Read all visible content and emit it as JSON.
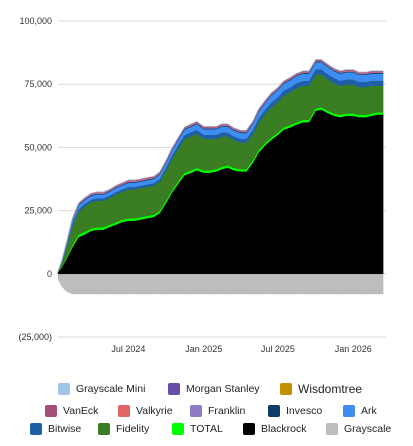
{
  "chart_data": {
    "type": "area",
    "stacked": true,
    "x": [
      "2024-01-11",
      "2024-01-20",
      "2024-02-01",
      "2024-02-15",
      "2024-03-01",
      "2024-03-15",
      "2024-04-01",
      "2024-04-15",
      "2024-05-01",
      "2024-05-15",
      "2024-06-01",
      "2024-06-15",
      "2024-07-01",
      "2024-07-15",
      "2024-08-01",
      "2024-08-15",
      "2024-09-01",
      "2024-09-15",
      "2024-10-01",
      "2024-10-15",
      "2024-11-01",
      "2024-11-15",
      "2024-12-01",
      "2024-12-15",
      "2025-01-01",
      "2025-01-15",
      "2025-02-01",
      "2025-02-15",
      "2025-03-01",
      "2025-03-15",
      "2025-04-01",
      "2025-04-15",
      "2025-05-01",
      "2025-05-15",
      "2025-06-01",
      "2025-06-15",
      "2025-07-01",
      "2025-07-15",
      "2025-08-01",
      "2025-08-15",
      "2025-09-01",
      "2025-09-15",
      "2025-10-01",
      "2025-10-15",
      "2025-11-01",
      "2025-11-15",
      "2025-12-01",
      "2025-12-15",
      "2026-01-01",
      "2026-01-15",
      "2026-02-01",
      "2026-02-15",
      "2026-03-01",
      "2026-03-15"
    ],
    "ylim": [
      -25000,
      100000
    ],
    "y_ticks": [
      -25000,
      0,
      25000,
      50000,
      75000,
      100000
    ],
    "y_tick_labels": [
      "(25,000)",
      "0",
      "25,000",
      "50,000",
      "75,000",
      "100,000"
    ],
    "x_ticks": [
      "2024-07-01",
      "2025-01-01",
      "2025-07-01",
      "2026-01-01"
    ],
    "x_tick_labels": [
      "Jul 2024",
      "Jan 2025",
      "Jul 2025",
      "Jan 2026"
    ],
    "grid": true,
    "legend_position": "bottom",
    "series": [
      {
        "name": "Grayscale",
        "color": "#bdbdbd",
        "values": [
          -2000,
          -5000,
          -7000,
          -8000,
          -8000,
          -8000,
          -8000,
          -8000,
          -8000,
          -8000,
          -8000,
          -8000,
          -8000,
          -8000,
          -8000,
          -8000,
          -8000,
          -8000,
          -8000,
          -8000,
          -8000,
          -8000,
          -8000,
          -8000,
          -8000,
          -8000,
          -8000,
          -8000,
          -8000,
          -8000,
          -8000,
          -8000,
          -8000,
          -8000,
          -8000,
          -8000,
          -8000,
          -8000,
          -8000,
          -8000,
          -8000,
          -8000,
          -8000,
          -8000,
          -8000,
          -8000,
          -8000,
          -8000,
          -8000,
          -8000,
          -8000,
          -8000,
          -8000,
          -8000
        ]
      },
      {
        "name": "Blackrock",
        "color": "#000000",
        "values": [
          500,
          2500,
          6000,
          10500,
          14500,
          15500,
          17000,
          17500,
          17500,
          18500,
          19500,
          20500,
          21000,
          21000,
          21500,
          22000,
          22500,
          24000,
          28000,
          32000,
          36000,
          39000,
          40000,
          41000,
          40000,
          40000,
          40500,
          41500,
          42000,
          41000,
          40500,
          40500,
          44000,
          48000,
          51000,
          53000,
          55000,
          57000,
          58000,
          59000,
          60000,
          60000,
          64500,
          65000,
          63500,
          62500,
          62000,
          62500,
          62500,
          62000,
          62000,
          62500,
          63000,
          63000
        ]
      },
      {
        "name": "TOTAL",
        "color": "#00ff00",
        "values": [
          0,
          200,
          500,
          800,
          1000,
          1000,
          900,
          900,
          900,
          900,
          900,
          900,
          900,
          900,
          900,
          900,
          900,
          900,
          900,
          900,
          900,
          900,
          900,
          900,
          900,
          900,
          900,
          900,
          900,
          900,
          900,
          900,
          900,
          900,
          900,
          900,
          900,
          900,
          900,
          900,
          900,
          900,
          900,
          900,
          900,
          900,
          900,
          900,
          900,
          900,
          900,
          900,
          900,
          900
        ]
      },
      {
        "name": "Fidelity",
        "color": "#3a7d22",
        "values": [
          500,
          1500,
          4000,
          7500,
          9000,
          10000,
          10500,
          10500,
          10500,
          10500,
          11000,
          11000,
          11500,
          11500,
          11500,
          11500,
          11500,
          11500,
          12000,
          12500,
          13000,
          13500,
          13500,
          13500,
          12500,
          12500,
          12000,
          12000,
          11500,
          11000,
          10500,
          10500,
          10500,
          11000,
          11500,
          12000,
          12000,
          12500,
          13000,
          13500,
          13500,
          13500,
          13500,
          13000,
          12500,
          12000,
          11500,
          11500,
          11500,
          11000,
          11000,
          11000,
          10500,
          10500
        ]
      },
      {
        "name": "Bitwise",
        "color": "#1f5fa8",
        "values": [
          0,
          300,
          700,
          900,
          1000,
          1000,
          1000,
          1000,
          1000,
          1000,
          1000,
          1000,
          1000,
          1000,
          1000,
          1000,
          1000,
          1100,
          1200,
          1300,
          1400,
          1500,
          1600,
          1600,
          1600,
          1600,
          1600,
          1600,
          1500,
          1500,
          1500,
          1500,
          1600,
          1700,
          1800,
          1900,
          2000,
          2000,
          2000,
          2000,
          2000,
          2000,
          2000,
          2000,
          2000,
          2000,
          2000,
          2000,
          2000,
          2000,
          2000,
          2000,
          2000,
          2000
        ]
      },
      {
        "name": "Ark",
        "color": "#3d8ef0",
        "values": [
          0,
          300,
          800,
          1200,
          1500,
          1500,
          1500,
          1500,
          1500,
          1500,
          1600,
          1600,
          1600,
          1600,
          1600,
          1600,
          1600,
          1700,
          1800,
          1900,
          2000,
          2100,
          2200,
          2200,
          2200,
          2200,
          2300,
          2300,
          2300,
          2300,
          2300,
          2300,
          2400,
          2500,
          2600,
          2700,
          2800,
          2800,
          2800,
          2800,
          2800,
          2800,
          2800,
          2800,
          2800,
          2800,
          2800,
          2800,
          2800,
          2800,
          2800,
          2800,
          2800,
          2800
        ]
      },
      {
        "name": "Invesco",
        "color": "#0d3c66",
        "values": [
          0,
          100,
          200,
          300,
          300,
          300,
          300,
          300,
          300,
          300,
          300,
          300,
          300,
          300,
          300,
          300,
          300,
          300,
          300,
          300,
          300,
          300,
          300,
          300,
          300,
          300,
          300,
          300,
          300,
          300,
          300,
          300,
          300,
          300,
          300,
          300,
          300,
          300,
          300,
          300,
          300,
          300,
          300,
          300,
          300,
          300,
          300,
          300,
          300,
          300,
          300,
          300,
          300,
          300
        ]
      },
      {
        "name": "Franklin",
        "color": "#8e7cc3",
        "values": [
          0,
          50,
          100,
          200,
          200,
          200,
          200,
          200,
          200,
          200,
          200,
          200,
          200,
          200,
          200,
          200,
          200,
          200,
          200,
          200,
          200,
          200,
          200,
          200,
          200,
          200,
          200,
          200,
          200,
          200,
          200,
          200,
          200,
          200,
          200,
          200,
          200,
          200,
          200,
          200,
          200,
          200,
          200,
          200,
          200,
          200,
          200,
          200,
          200,
          200,
          200,
          200,
          200,
          200
        ]
      },
      {
        "name": "Valkyrie",
        "color": "#e06666",
        "values": [
          0,
          50,
          100,
          200,
          200,
          200,
          200,
          200,
          200,
          200,
          200,
          200,
          200,
          200,
          200,
          200,
          200,
          200,
          200,
          200,
          200,
          200,
          200,
          200,
          200,
          200,
          200,
          200,
          200,
          200,
          200,
          200,
          200,
          200,
          200,
          200,
          200,
          200,
          200,
          200,
          200,
          200,
          200,
          200,
          200,
          200,
          200,
          200,
          200,
          200,
          200,
          200,
          200,
          200
        ]
      },
      {
        "name": "VanEck",
        "color": "#a64d79",
        "values": [
          0,
          50,
          100,
          200,
          200,
          200,
          200,
          200,
          200,
          200,
          200,
          200,
          300,
          300,
          300,
          300,
          300,
          300,
          300,
          300,
          300,
          300,
          300,
          300,
          300,
          300,
          300,
          300,
          300,
          300,
          300,
          300,
          300,
          300,
          300,
          300,
          300,
          300,
          300,
          300,
          300,
          300,
          300,
          300,
          300,
          300,
          300,
          300,
          300,
          300,
          300,
          300,
          300,
          300
        ]
      },
      {
        "name": "Wisdomtree",
        "color": "#bf9000",
        "values": [
          0,
          0,
          0,
          50,
          50,
          50,
          50,
          50,
          50,
          50,
          50,
          50,
          50,
          50,
          50,
          50,
          50,
          50,
          50,
          50,
          50,
          50,
          50,
          50,
          50,
          50,
          50,
          50,
          50,
          50,
          50,
          50,
          50,
          50,
          50,
          50,
          50,
          50,
          50,
          50,
          50,
          50,
          50,
          50,
          50,
          50,
          50,
          50,
          50,
          50,
          50,
          50,
          50,
          50
        ]
      },
      {
        "name": "Morgan Stanley",
        "color": "#674ea7",
        "values": [
          0,
          0,
          0,
          0,
          0,
          0,
          0,
          0,
          0,
          0,
          0,
          0,
          0,
          0,
          0,
          0,
          0,
          0,
          0,
          0,
          0,
          0,
          0,
          0,
          0,
          0,
          0,
          0,
          0,
          0,
          0,
          0,
          0,
          0,
          0,
          0,
          0,
          0,
          0,
          0,
          0,
          0,
          0,
          0,
          0,
          0,
          0,
          0,
          0,
          0,
          0,
          0,
          0,
          0
        ]
      },
      {
        "name": "Grayscale Mini",
        "color": "#9fc5e8",
        "values": [
          0,
          0,
          0,
          0,
          0,
          0,
          0,
          0,
          0,
          0,
          0,
          0,
          0,
          0,
          0,
          0,
          0,
          0,
          0,
          0,
          0,
          0,
          0,
          0,
          0,
          0,
          0,
          0,
          0,
          0,
          0,
          0,
          0,
          0,
          0,
          0,
          0,
          0,
          0,
          0,
          0,
          0,
          0,
          0,
          0,
          0,
          0,
          0,
          0,
          0,
          0,
          0,
          0,
          0
        ]
      }
    ]
  },
  "legend": {
    "rows": [
      [
        {
          "label": "Grayscale Mini",
          "color": "#9fc5e8",
          "size": "normal"
        },
        {
          "label": "Morgan Stanley",
          "color": "#674ea7",
          "size": "normal"
        },
        {
          "label": "Wisdomtree",
          "color": "#bf9000",
          "size": "big"
        }
      ],
      [
        {
          "label": "VanEck",
          "color": "#a64d79",
          "size": "normal"
        },
        {
          "label": "Valkyrie",
          "color": "#e06666",
          "size": "normal"
        },
        {
          "label": "Franklin",
          "color": "#8e7cc3",
          "size": "normal"
        },
        {
          "label": "Invesco",
          "color": "#0d3c66",
          "size": "normal"
        },
        {
          "label": "Ark",
          "color": "#3d8ef0",
          "size": "normal"
        }
      ],
      [
        {
          "label": "Bitwise",
          "color": "#1f5fa8",
          "size": "normal"
        },
        {
          "label": "Fidelity",
          "color": "#3a7d22",
          "size": "normal"
        },
        {
          "label": "TOTAL",
          "color": "#00ff00",
          "size": "normal"
        },
        {
          "label": "Blackrock",
          "color": "#000000",
          "size": "normal"
        },
        {
          "label": "Grayscale",
          "color": "#bdbdbd",
          "size": "normal"
        }
      ]
    ]
  }
}
